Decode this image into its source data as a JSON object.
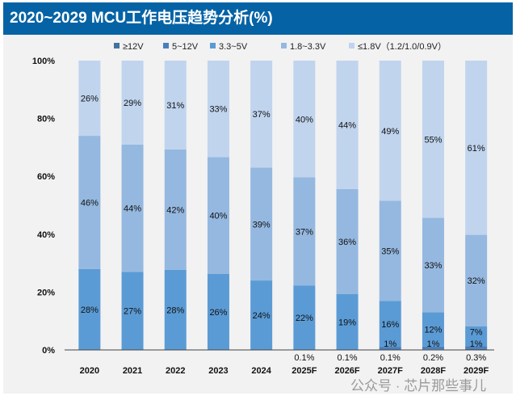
{
  "chart_data": {
    "type": "bar",
    "stacked": true,
    "title": "2020~2029 MCU工作电压趋势分析(%)",
    "categories": [
      "2020",
      "2021",
      "2022",
      "2023",
      "2024",
      "2025F",
      "2026F",
      "2027F",
      "2028F",
      "2029F"
    ],
    "series": [
      {
        "name": "≥12V",
        "color": "#44729e",
        "values": [
          0,
          0,
          0,
          0,
          0,
          0.1,
          0.1,
          0.1,
          0.2,
          0.3
        ],
        "labels": [
          "",
          "",
          "",
          "",
          "",
          "0.1%",
          "0.1%",
          "0.1%",
          "0.2%",
          "0.3%"
        ]
      },
      {
        "name": "5~12V",
        "color": "#4a7ebb",
        "values": [
          0,
          0,
          0,
          0,
          0,
          0,
          0,
          1,
          1,
          1
        ],
        "labels": [
          "",
          "",
          "",
          "",
          "",
          "",
          "",
          "1%",
          "1%",
          "1%"
        ]
      },
      {
        "name": "3.3~5V",
        "color": "#5b9bd5",
        "values": [
          28,
          27,
          28,
          26,
          24,
          22,
          19,
          16,
          12,
          7
        ],
        "labels": [
          "28%",
          "27%",
          "28%",
          "26%",
          "24%",
          "22%",
          "19%",
          "16%",
          "12%",
          "7%"
        ]
      },
      {
        "name": "1.8~3.3V",
        "color": "#95b8e0",
        "values": [
          46,
          44,
          42,
          40,
          39,
          37,
          36,
          35,
          33,
          32
        ],
        "labels": [
          "46%",
          "44%",
          "42%",
          "40%",
          "39%",
          "37%",
          "36%",
          "35%",
          "33%",
          "32%"
        ]
      },
      {
        "name": "≤1.8V（1.2/1.0/0.9V）",
        "color": "#c0d4ee",
        "values": [
          26,
          29,
          31,
          33,
          37,
          40,
          44,
          49,
          55,
          61
        ],
        "labels": [
          "26%",
          "29%",
          "31%",
          "33%",
          "37%",
          "40%",
          "44%",
          "49%",
          "55%",
          "61%"
        ]
      }
    ],
    "yticks": [
      "0%",
      "20%",
      "40%",
      "60%",
      "80%",
      "100%"
    ],
    "ylim": [
      0,
      100
    ],
    "legend": "top",
    "grid": false
  },
  "watermark": "公众号 · 芯片那些事儿"
}
